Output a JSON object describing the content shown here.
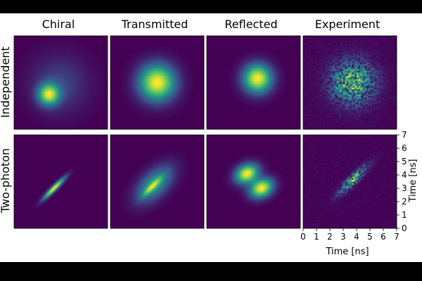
{
  "figure": {
    "columns": [
      "Chiral",
      "Transmitted",
      "Reflected",
      "Experiment"
    ],
    "rows": [
      "Independent",
      "Two-photon"
    ],
    "colors": {
      "background": "#000000",
      "panel": "#ffffff",
      "colormap": [
        "#440154",
        "#3b528b",
        "#21918c",
        "#5ec962",
        "#fde725"
      ]
    }
  },
  "chart_data": {
    "type": "heatmap",
    "colormap": "viridis",
    "columns": [
      "Chiral",
      "Transmitted",
      "Reflected",
      "Experiment"
    ],
    "rows": [
      "Independent",
      "Two-photon"
    ],
    "xlabel": "Time [ns]",
    "ylabel": "Time [ns]",
    "xlim": [
      0,
      7
    ],
    "ylim": [
      0,
      7
    ],
    "xticks": [
      0,
      1,
      2,
      3,
      4,
      5,
      6,
      7
    ],
    "yticks": [
      0,
      1,
      2,
      3,
      4,
      5,
      6,
      7
    ],
    "panels": [
      {
        "row": "Independent",
        "column": "Chiral",
        "peaks": [
          {
            "x": 2.6,
            "y": 2.6,
            "sx": 0.55,
            "sy": 0.55,
            "rho": 0,
            "amp": 1.0
          },
          {
            "x": 3.4,
            "y": 3.4,
            "sx": 1.5,
            "sy": 1.5,
            "rho": 0,
            "amp": 0.25
          }
        ]
      },
      {
        "row": "Independent",
        "column": "Transmitted",
        "peaks": [
          {
            "x": 3.5,
            "y": 3.5,
            "sx": 0.95,
            "sy": 0.95,
            "rho": 0,
            "amp": 1.0
          }
        ]
      },
      {
        "row": "Independent",
        "column": "Reflected",
        "peaks": [
          {
            "x": 3.8,
            "y": 3.8,
            "sx": 0.75,
            "sy": 0.75,
            "rho": 0,
            "amp": 1.0
          }
        ]
      },
      {
        "row": "Independent",
        "column": "Experiment",
        "noisy": true,
        "peaks": [
          {
            "x": 3.7,
            "y": 3.5,
            "sx": 1.1,
            "sy": 1.1,
            "rho": 0,
            "amp": 0.85
          }
        ]
      },
      {
        "row": "Two-photon",
        "column": "Chiral",
        "peaks": [
          {
            "x": 3.0,
            "y": 3.0,
            "sx": 0.55,
            "sy": 0.55,
            "rho": 0.94,
            "amp": 1.0
          }
        ]
      },
      {
        "row": "Two-photon",
        "column": "Transmitted",
        "peaks": [
          {
            "x": 3.3,
            "y": 3.3,
            "sx": 0.95,
            "sy": 0.95,
            "rho": 0.55,
            "amp": 0.55
          },
          {
            "x": 3.1,
            "y": 3.1,
            "sx": 0.5,
            "sy": 0.5,
            "rho": 0.9,
            "amp": 0.45
          }
        ]
      },
      {
        "row": "Two-photon",
        "column": "Reflected",
        "peaks": [
          {
            "x": 3.0,
            "y": 4.1,
            "sx": 0.6,
            "sy": 0.5,
            "rho": 0.25,
            "amp": 1.0
          },
          {
            "x": 4.1,
            "y": 3.0,
            "sx": 0.6,
            "sy": 0.5,
            "rho": 0.25,
            "amp": 1.0
          }
        ]
      },
      {
        "row": "Two-photon",
        "column": "Experiment",
        "noisy": true,
        "peaks": [
          {
            "x": 3.7,
            "y": 3.6,
            "sx": 0.7,
            "sy": 0.7,
            "rho": 0.9,
            "amp": 1.0
          }
        ]
      }
    ]
  }
}
